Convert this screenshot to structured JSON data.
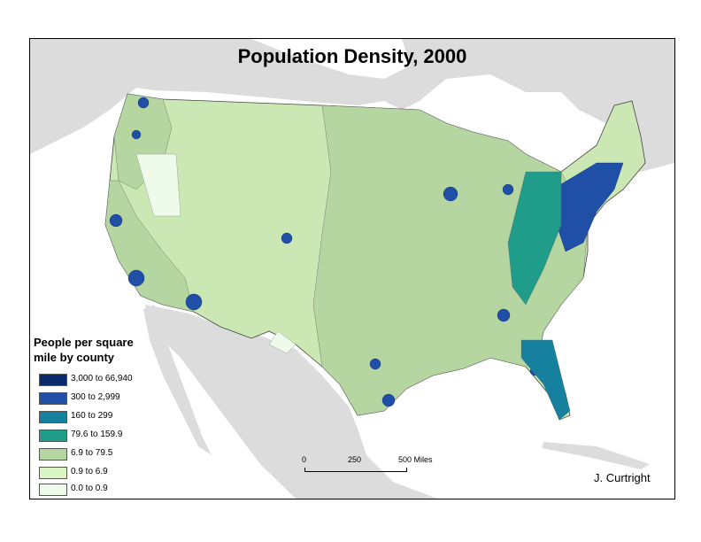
{
  "title": "Population Density, 2000",
  "legend": {
    "title_line1": "People per square",
    "title_line2": "mile by county",
    "classes": [
      {
        "label": "3,000 to 66,940",
        "color": "#0a2a6e"
      },
      {
        "label": "300 to 2,999",
        "color": "#1f4fa6"
      },
      {
        "label": "160 to 299",
        "color": "#16809f"
      },
      {
        "label": "79.6 to 159.9",
        "color": "#1f9d8a"
      },
      {
        "label": "6.9 to 79.5",
        "color": "#b5d6a0"
      },
      {
        "label": "0.9 to 6.9",
        "color": "#d9f5c4"
      },
      {
        "label": "0.0 to 0.9",
        "color": "#eefaea"
      }
    ]
  },
  "scale_bar": {
    "ticks": [
      "0",
      "250",
      "500 Miles"
    ]
  },
  "credit": "J. Curtright",
  "colors": {
    "land_background": "#e0e0e0",
    "water": "#ffffff",
    "county_border": "#555555"
  }
}
